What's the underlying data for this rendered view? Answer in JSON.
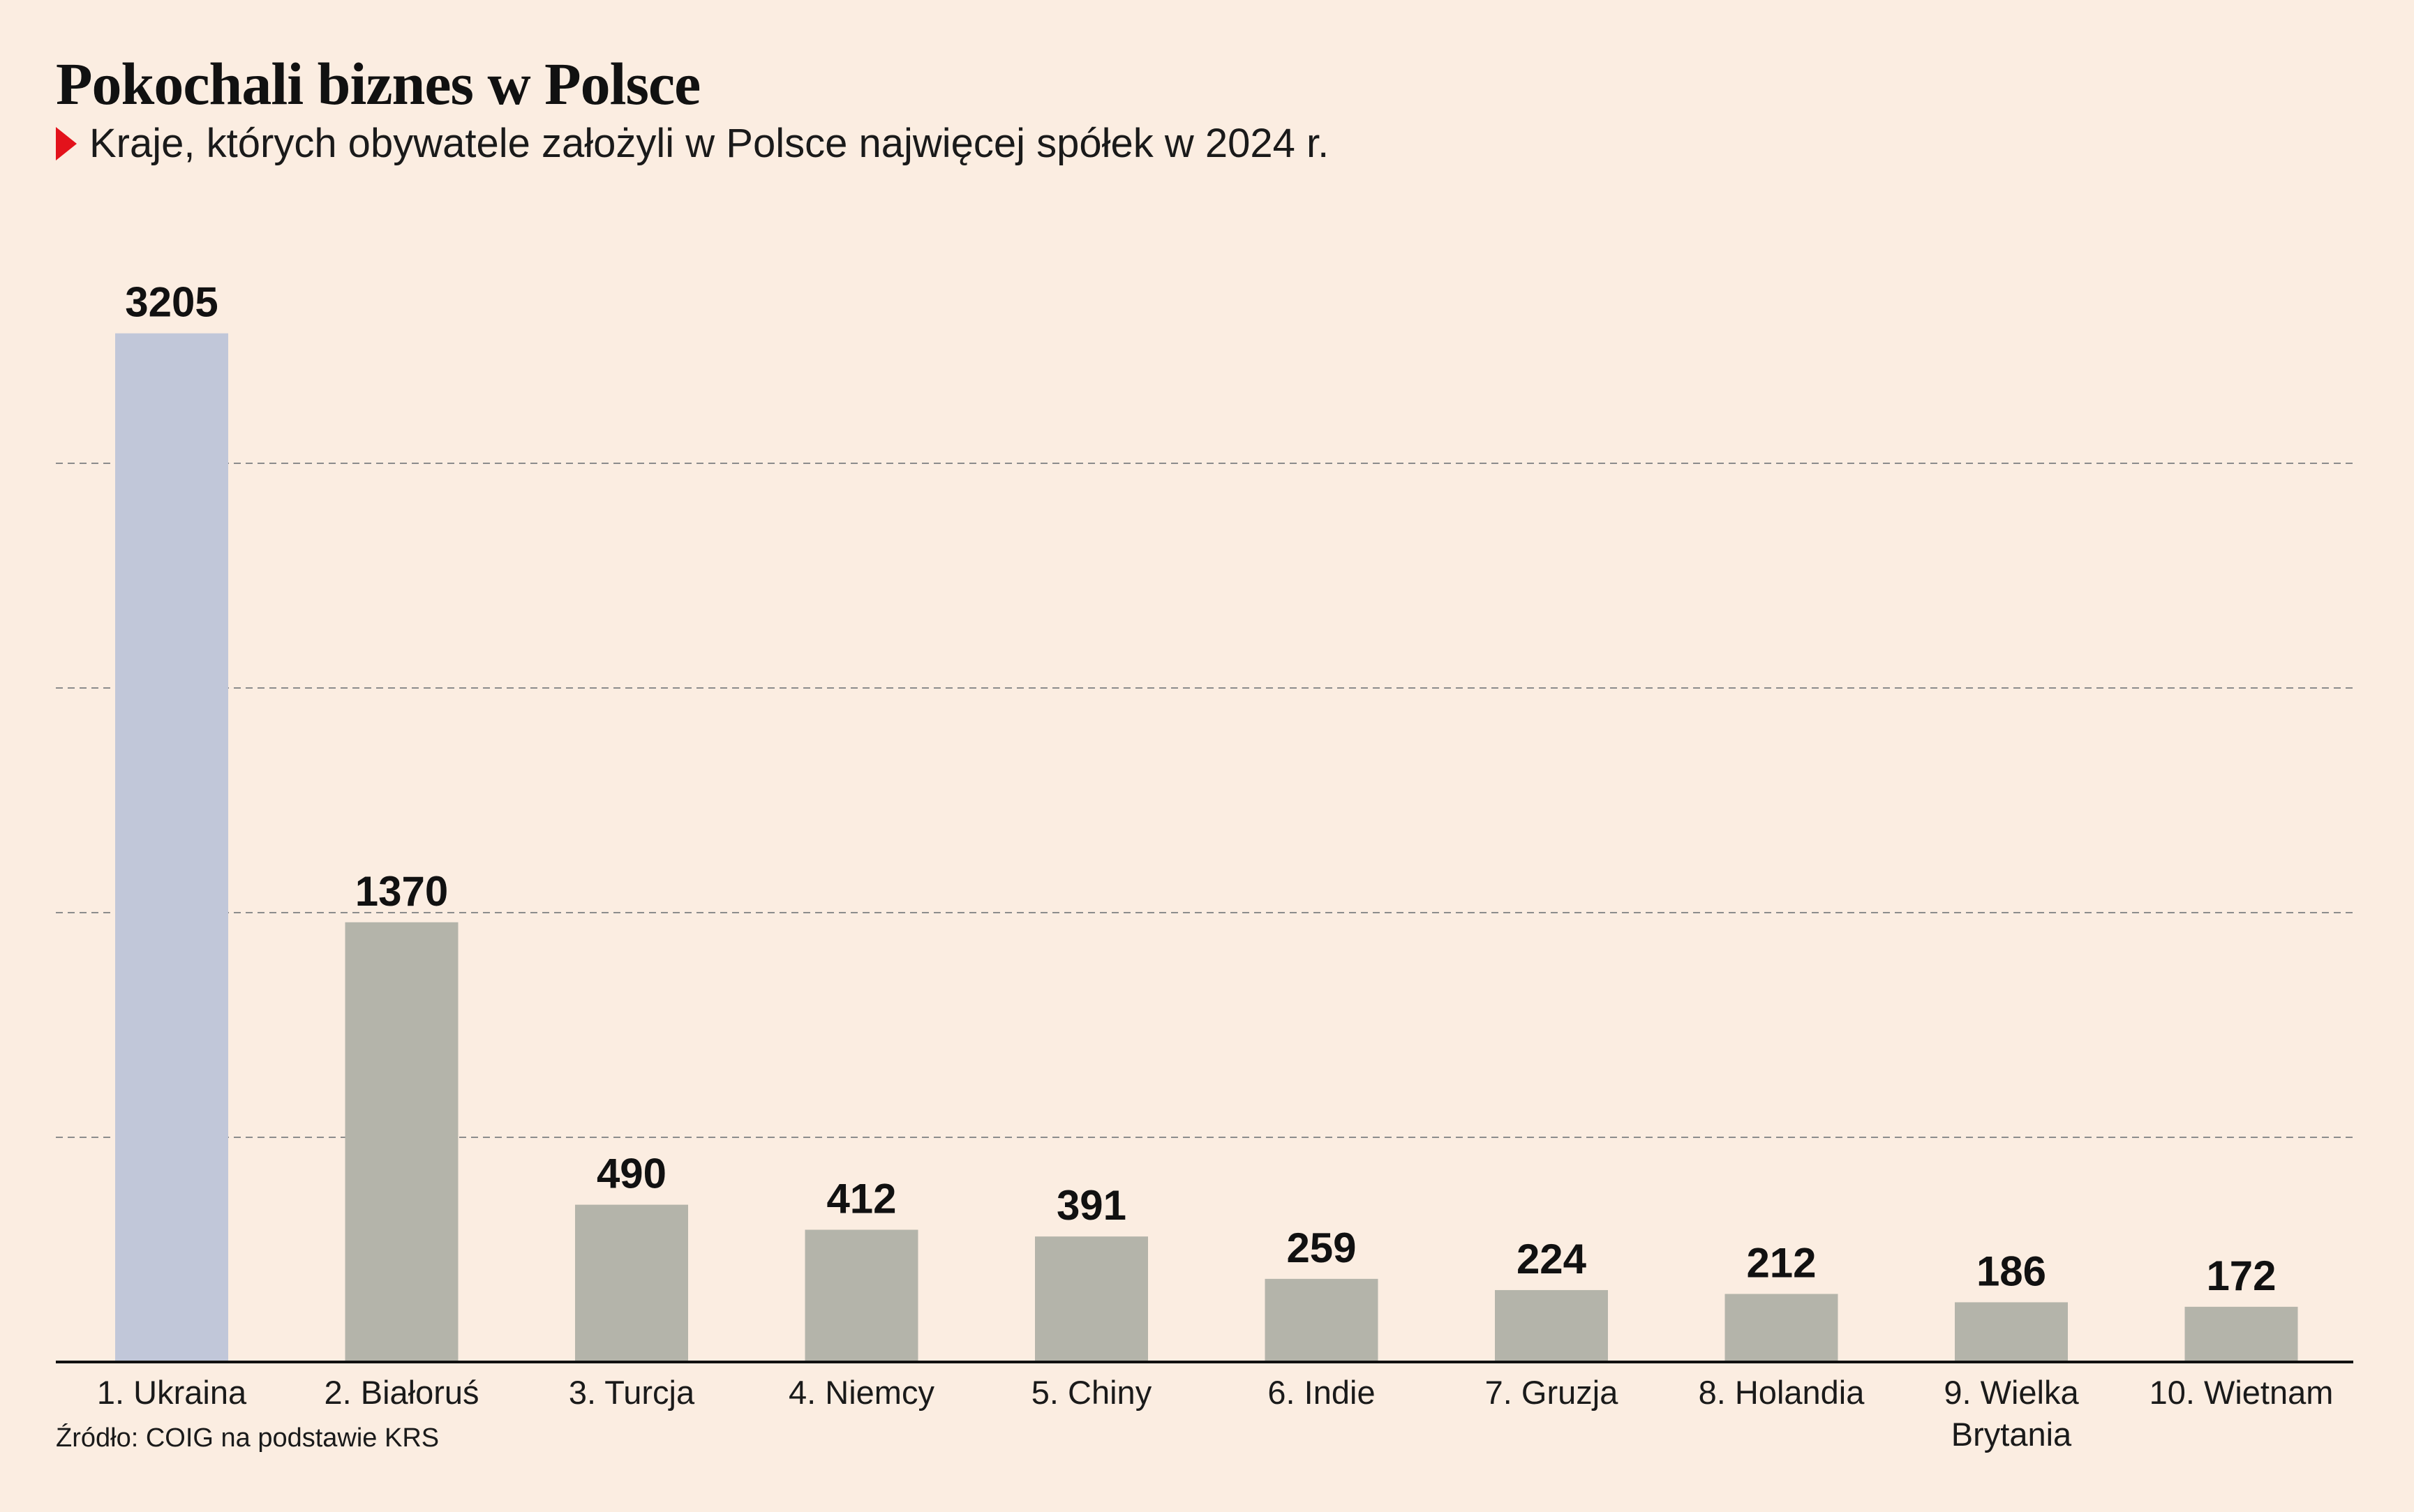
{
  "title": "Pokochali biznes w Polsce",
  "subtitle": "Kraje, których obywatele założyli w Polsce najwięcej spółek w 2024 r.",
  "source": "Źródło: COIG  na podstawie KRS",
  "colors": {
    "background": "#FBEDE1",
    "highlight_bar": "#C1C7D9",
    "bar": "#B4B4AA",
    "marker": "#E3121B",
    "gridline": "#8C8C8C",
    "axis": "#111111"
  },
  "chart_data": {
    "type": "bar",
    "categories": [
      "1. Ukraina",
      "2. Białoruś",
      "3. Turcja",
      "4. Niemcy",
      "5. Chiny",
      "6. Indie",
      "7. Gruzja",
      "8. Holandia",
      "9. Wielka Brytania",
      "10. Wietnam"
    ],
    "category_lines": [
      [
        "1. Ukraina"
      ],
      [
        "2. Białoruś"
      ],
      [
        "3. Turcja"
      ],
      [
        "4. Niemcy"
      ],
      [
        "5. Chiny"
      ],
      [
        "6. Indie"
      ],
      [
        "7. Gruzja"
      ],
      [
        "8. Holandia"
      ],
      [
        "9. Wielka",
        "Brytania"
      ],
      [
        "10. Wietnam"
      ]
    ],
    "values": [
      3205,
      1370,
      490,
      412,
      391,
      259,
      224,
      212,
      186,
      172
    ],
    "value_labels": [
      "3205",
      "1370",
      "490",
      "412",
      "391",
      "259",
      "224",
      "212",
      "186",
      "172"
    ],
    "highlight_index": 0,
    "ylim": [
      0,
      3500
    ],
    "gridlines": [
      700,
      1400,
      2100,
      2800
    ],
    "grid": true,
    "legend": "none",
    "xlabel": "",
    "ylabel": ""
  }
}
